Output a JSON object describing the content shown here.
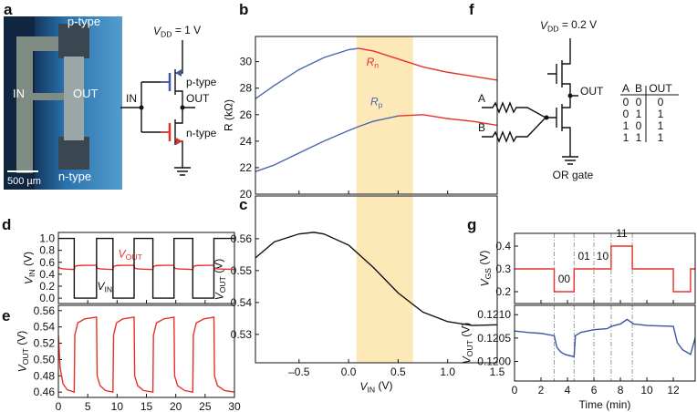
{
  "photo": {
    "panel": "a",
    "p_type": "p-type",
    "in": "IN",
    "out": "OUT",
    "n_type": "n-type",
    "scale": "500 µm"
  },
  "circuit_a": {
    "vdd": [
      "V",
      "DD",
      " = 1 V"
    ],
    "in": "IN",
    "out": "OUT",
    "p_type": "p-type",
    "n_type": "n-type"
  },
  "circuit_f": {
    "panel": "f",
    "vdd": [
      "V",
      "DD",
      " = 0.2 V"
    ],
    "out": "OUT",
    "a": "A",
    "b": "B",
    "caption": "OR gate"
  },
  "truth_table": {
    "header": [
      "A",
      "B",
      "OUT"
    ],
    "rows": [
      [
        0,
        0,
        0
      ],
      [
        0,
        1,
        1
      ],
      [
        1,
        0,
        1
      ],
      [
        1,
        1,
        1
      ]
    ]
  },
  "chart_data": [
    {
      "panel": "b",
      "type": "line",
      "x": [
        -0.94,
        -0.75,
        -0.5,
        -0.25,
        0,
        0.1,
        0.25,
        0.5,
        0.75,
        1,
        1.25,
        1.5
      ],
      "xlim": [
        -0.94,
        1.5
      ],
      "xticks": [
        -0.5,
        0,
        0.5,
        1,
        1.5
      ],
      "xtick_labels": false,
      "ylim": [
        20,
        31.9
      ],
      "yticks": [
        20,
        22,
        24,
        26,
        28,
        30
      ],
      "ylabel": "R (kΩ)",
      "highlight": [
        0.08,
        0.65
      ],
      "highlight_color": "#fde9b8",
      "series": [
        {
          "name": [
            "R",
            "n"
          ],
          "color": "#e8302a",
          "values": [
            null,
            null,
            null,
            null,
            null,
            31.0,
            30.8,
            30.2,
            29.6,
            29.2,
            28.9,
            28.6
          ]
        },
        {
          "color": "#4a66b0",
          "values": [
            27.2,
            28.2,
            29.4,
            30.3,
            30.9,
            31.0,
            null,
            null,
            null,
            null,
            null,
            null
          ]
        },
        {
          "name": [
            "R",
            "p"
          ],
          "color": "#4a66b0",
          "values": [
            21.7,
            22.2,
            23.1,
            24.0,
            24.8,
            25.1,
            25.5,
            25.9,
            null,
            null,
            null,
            null
          ]
        },
        {
          "color": "#e8302a",
          "values": [
            null,
            null,
            null,
            null,
            null,
            null,
            null,
            25.9,
            26.0,
            25.7,
            25.5,
            25.2
          ]
        }
      ]
    },
    {
      "panel": "c",
      "type": "line",
      "x": [
        -0.94,
        -0.75,
        -0.5,
        -0.35,
        -0.25,
        0,
        0.25,
        0.5,
        0.75,
        1,
        1.25,
        1.5
      ],
      "xlim": [
        -0.94,
        1.5
      ],
      "xticks": [
        {
          "value": -0.5,
          "label": "–0.5"
        },
        {
          "value": 0,
          "label": "0.0"
        },
        0.5,
        {
          "value": 1,
          "label": "1.0"
        },
        1.5
      ],
      "xlabel": [
        "V",
        "IN",
        " (V)"
      ],
      "ylim": [
        0.5211,
        0.5734
      ],
      "yticks": [
        0.53,
        0.54,
        0.55,
        0.56
      ],
      "ylabel": [
        "V",
        "OUT",
        " (V)"
      ],
      "highlight": [
        0.08,
        0.65
      ],
      "highlight_color": "#fde9b8",
      "series": [
        {
          "color": "#111111",
          "values": [
            0.554,
            0.559,
            0.5615,
            0.562,
            0.5615,
            0.558,
            0.551,
            0.543,
            0.537,
            0.534,
            0.5328,
            0.533
          ]
        }
      ]
    },
    {
      "panel": "d",
      "type": "line",
      "xlim": [
        0,
        30
      ],
      "xticks": [
        0,
        5,
        10,
        15,
        20,
        25,
        30
      ],
      "xtick_labels": false,
      "ylim": [
        -0.09,
        1.1
      ],
      "yticks": [
        {
          "value": 0,
          "label": "0.0"
        },
        0.2,
        0.4,
        0.6,
        0.8,
        {
          "value": 1,
          "label": "1.0"
        }
      ],
      "ylabel": [
        "V",
        "IN",
        " (V)"
      ],
      "series": [
        {
          "name": [
            "V",
            "OUT"
          ],
          "color": "#e8302a",
          "x": [
            0,
            0.3,
            0.8,
            1.5,
            2.7,
            2.8,
            3.3,
            4.5,
            6.5,
            6.6,
            7.1,
            8,
            9.3,
            9.4,
            9.9,
            11,
            12.9,
            13,
            13.5,
            14.5,
            16.1,
            16.2,
            16.7,
            18,
            19.7,
            19.8,
            20.3,
            21.5,
            22.9,
            23,
            23.5,
            24.8,
            26.5,
            26.6,
            27.1,
            28.3,
            30
          ],
          "values": [
            0.52,
            0.5,
            0.49,
            0.485,
            0.48,
            0.53,
            0.545,
            0.55,
            0.55,
            0.5,
            0.49,
            0.485,
            0.48,
            0.53,
            0.545,
            0.55,
            0.55,
            0.5,
            0.49,
            0.485,
            0.48,
            0.53,
            0.545,
            0.55,
            0.55,
            0.5,
            0.49,
            0.485,
            0.48,
            0.53,
            0.545,
            0.55,
            0.55,
            0.5,
            0.49,
            0.485,
            0.48
          ]
        },
        {
          "name": [
            "V",
            "IN"
          ],
          "color": "#111111",
          "x": [
            0,
            2.7,
            2.7,
            6.5,
            6.5,
            9.3,
            9.3,
            12.9,
            12.9,
            16.1,
            16.1,
            19.7,
            19.7,
            22.9,
            22.9,
            26.5,
            26.5,
            30
          ],
          "values": [
            1,
            1,
            0,
            0,
            1,
            1,
            0,
            0,
            1,
            1,
            0,
            0,
            1,
            1,
            0,
            0,
            1,
            1
          ]
        }
      ]
    },
    {
      "panel": "e",
      "type": "line",
      "xlim": [
        0,
        30
      ],
      "xticks": [
        0,
        5,
        10,
        15,
        20,
        25,
        30
      ],
      "xlabel": "Time (min)",
      "ylim": [
        0.4535,
        0.5665
      ],
      "yticks": [
        0.46,
        0.48,
        {
          "value": 0.5,
          "label": "0.50"
        },
        0.52,
        0.54,
        0.56
      ],
      "ylabel": [
        "V",
        "OUT",
        " (V)"
      ],
      "series": [
        {
          "color": "#e8302a",
          "x": [
            0,
            0.3,
            0.8,
            1.5,
            2.7,
            2.8,
            3.3,
            4.5,
            6.5,
            6.6,
            7.1,
            8,
            9.3,
            9.4,
            9.9,
            11,
            12.9,
            13,
            13.5,
            14.5,
            16.1,
            16.2,
            16.7,
            18,
            19.7,
            19.8,
            20.3,
            21.5,
            22.9,
            23,
            23.5,
            24.8,
            26.5,
            26.6,
            27.1,
            28.3,
            30
          ],
          "values": [
            0.53,
            0.49,
            0.47,
            0.463,
            0.46,
            0.53,
            0.545,
            0.55,
            0.552,
            0.48,
            0.468,
            0.462,
            0.46,
            0.53,
            0.545,
            0.55,
            0.552,
            0.48,
            0.468,
            0.462,
            0.46,
            0.53,
            0.545,
            0.55,
            0.552,
            0.48,
            0.468,
            0.462,
            0.46,
            0.53,
            0.545,
            0.55,
            0.552,
            0.48,
            0.468,
            0.462,
            0.46
          ]
        }
      ]
    },
    {
      "panel": "g",
      "type": "line",
      "xlim": [
        0,
        13.65
      ],
      "xticks": [
        0,
        2,
        4,
        6,
        8,
        10,
        12
      ],
      "xtick_labels": false,
      "ylim": [
        0.148,
        0.456
      ],
      "yticks": [
        0.2,
        0.3,
        0.4
      ],
      "ylabel": [
        "V",
        "GS",
        " (V)"
      ],
      "vlines": [
        3,
        4.5,
        6,
        7.3,
        8.9
      ],
      "annotations": [
        "00",
        "01",
        "10",
        "11"
      ],
      "series": [
        {
          "color": "#e8302a",
          "x": [
            0,
            3,
            3,
            4.5,
            4.5,
            7.3,
            7.3,
            8.9,
            8.9,
            12,
            12,
            13.3,
            13.3,
            13.65
          ],
          "values": [
            0.3,
            0.3,
            0.2,
            0.2,
            0.3,
            0.3,
            0.4,
            0.4,
            0.3,
            0.3,
            0.2,
            0.2,
            0.3,
            0.3
          ]
        }
      ]
    },
    {
      "type": "line",
      "xlim": [
        0,
        13.65
      ],
      "xticks": [
        0,
        2,
        4,
        6,
        8,
        10,
        12
      ],
      "xlabel": "Time (min)",
      "ylim": [
        0.11958,
        0.1212
      ],
      "yticks": [
        {
          "value": 0.12,
          "label": "0.1200"
        },
        {
          "value": 0.1205,
          "label": "0.1205"
        },
        {
          "value": 0.121,
          "label": "0.1210"
        }
      ],
      "ylabel": [
        "V",
        "OUT",
        " (V)"
      ],
      "vlines": [
        3,
        4.5,
        6,
        7.3,
        8.9
      ],
      "series": [
        {
          "color": "#3d55a5",
          "x": [
            0,
            1,
            2,
            3,
            3.2,
            3.5,
            3.8,
            4.5,
            4.6,
            5,
            5.5,
            6,
            7,
            7.3,
            8,
            8.5,
            9,
            10,
            11,
            12,
            12.3,
            12.7,
            13,
            13.3,
            13.65
          ],
          "values": [
            0.12065,
            0.12062,
            0.1206,
            0.12055,
            0.1203,
            0.1202,
            0.12015,
            0.1201,
            0.12055,
            0.12062,
            0.12065,
            0.12068,
            0.1207,
            0.12075,
            0.1208,
            0.1209,
            0.1208,
            0.12077,
            0.12076,
            0.12075,
            0.1204,
            0.12025,
            0.1202,
            0.12015,
            0.1205
          ]
        }
      ]
    }
  ]
}
